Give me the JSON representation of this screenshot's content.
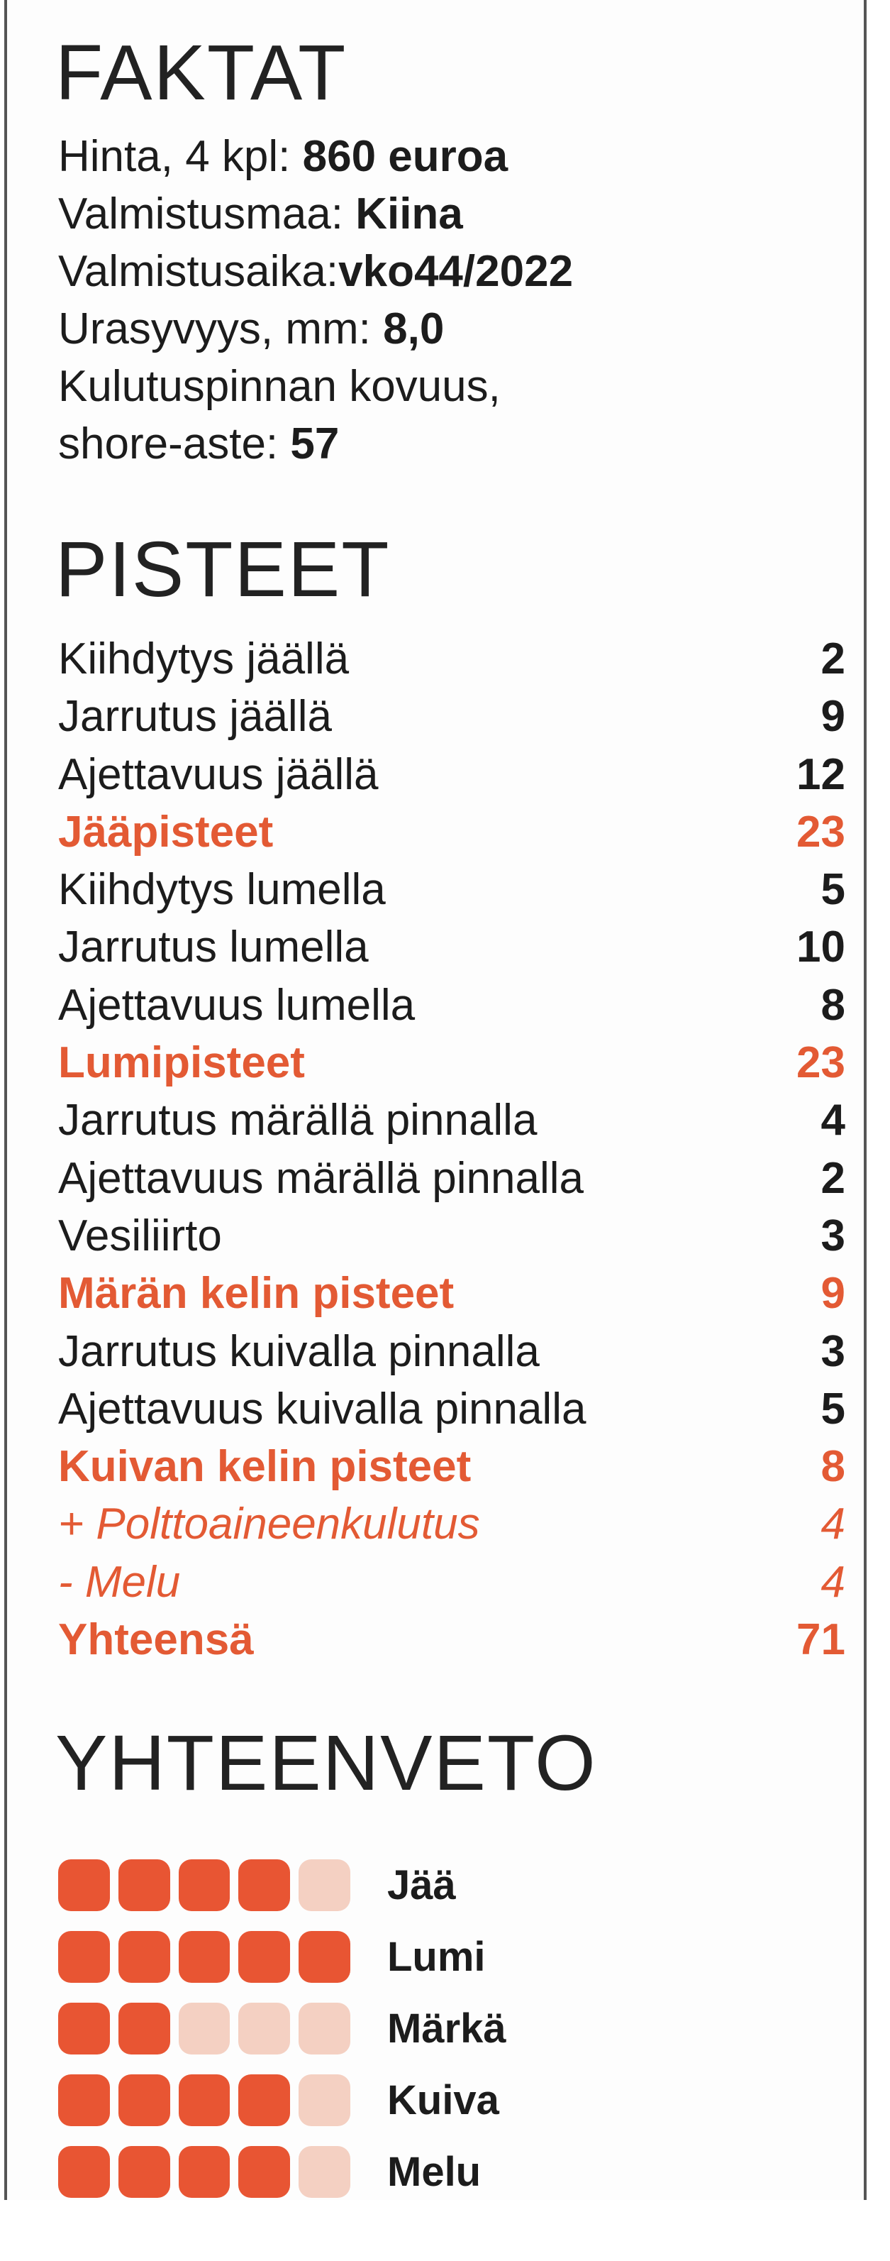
{
  "facts": {
    "title": "FAKTAT",
    "lines": [
      {
        "label": "Hinta, 4 kpl: ",
        "value": "860 euroa"
      },
      {
        "label": "Valmistusmaa: ",
        "value": "Kiina"
      },
      {
        "label": "Valmistusaika:",
        "value": "vko44/2022"
      },
      {
        "label": "Urasyvyys, mm: ",
        "value": "8,0"
      },
      {
        "label": "Kulutuspinnan kovuus,",
        "value": ""
      },
      {
        "label": "shore-aste: ",
        "value": "57"
      }
    ]
  },
  "scores": {
    "title": "PISTEET",
    "rows": [
      {
        "label": "Kiihdytys jäällä",
        "value": "2",
        "type": "normal"
      },
      {
        "label": "Jarrutus jäällä",
        "value": "9",
        "type": "normal"
      },
      {
        "label": "Ajettavuus jäällä",
        "value": "12",
        "type": "normal"
      },
      {
        "label": "Jääpisteet",
        "value": "23",
        "type": "total"
      },
      {
        "label": "Kiihdytys lumella",
        "value": "5",
        "type": "normal"
      },
      {
        "label": "Jarrutus lumella",
        "value": "10",
        "type": "normal"
      },
      {
        "label": "Ajettavuus lumella",
        "value": "8",
        "type": "normal"
      },
      {
        "label": "Lumipisteet",
        "value": "23",
        "type": "total"
      },
      {
        "label": "Jarrutus märällä pinnalla",
        "value": "4",
        "type": "normal"
      },
      {
        "label": "Ajettavuus märällä pinnalla",
        "value": "2",
        "type": "normal"
      },
      {
        "label": "Vesiliirto",
        "value": "3",
        "type": "normal"
      },
      {
        "label": "Märän kelin pisteet",
        "value": "9",
        "type": "total"
      },
      {
        "label": "Jarrutus kuivalla pinnalla",
        "value": "3",
        "type": "normal"
      },
      {
        "label": "Ajettavuus kuivalla pinnalla",
        "value": "5",
        "type": "normal"
      },
      {
        "label": "Kuivan kelin pisteet",
        "value": "8",
        "type": "total"
      },
      {
        "label": "+ Polttoaineenkulutus",
        "value": "4",
        "type": "adj"
      },
      {
        "label": "- Melu",
        "value": "4",
        "type": "adj"
      },
      {
        "label": "Yhteensä",
        "value": "71",
        "type": "total"
      }
    ]
  },
  "summary": {
    "title": "YHTEENVETO",
    "max": 5,
    "rows": [
      {
        "label": "Jää",
        "rating": 4
      },
      {
        "label": "Lumi",
        "rating": 5
      },
      {
        "label": "Märkä",
        "rating": 2
      },
      {
        "label": "Kuiva",
        "rating": 4
      },
      {
        "label": "Melu",
        "rating": 4
      }
    ]
  },
  "colors": {
    "accent": "#e85533",
    "accent_light": "#f4d0c2",
    "text": "#1c1c1c"
  }
}
